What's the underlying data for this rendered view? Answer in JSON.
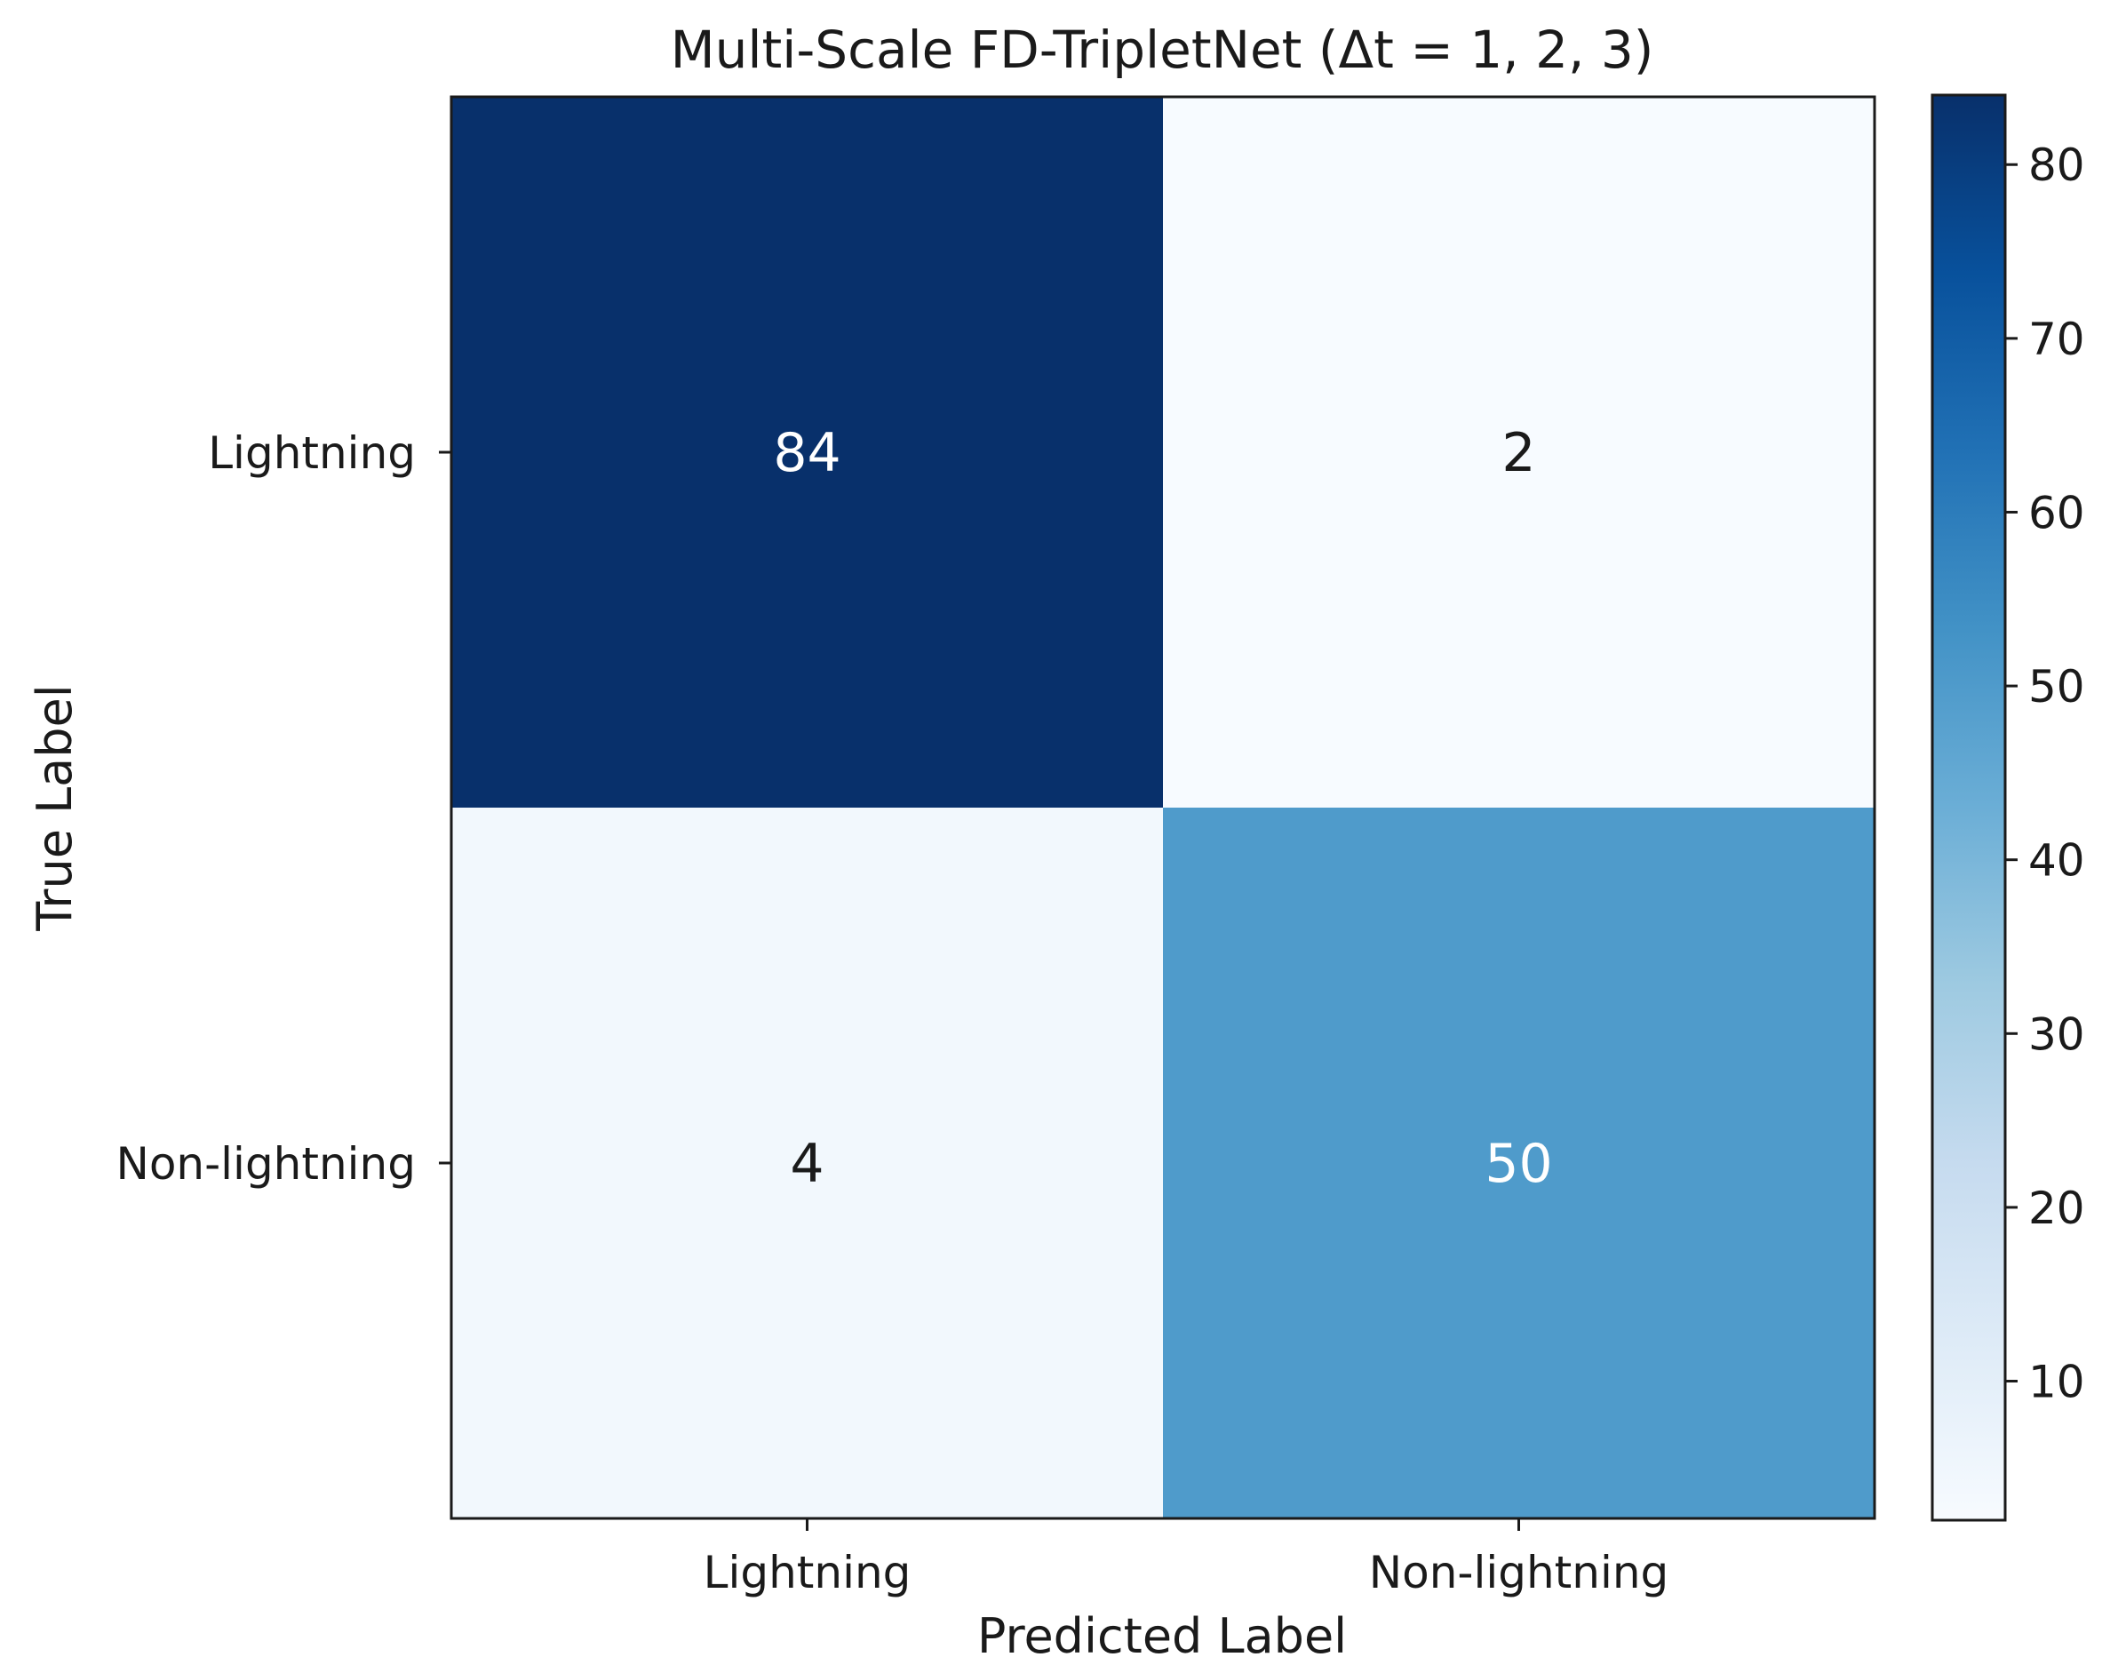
{
  "chart_data": {
    "type": "heatmap",
    "title": "Multi-Scale FD-TripletNet (Δt = 1, 2, 3)",
    "xlabel": "Predicted Label",
    "ylabel": "True Label",
    "x_categories": [
      "Lightning",
      "Non-lightning"
    ],
    "y_categories": [
      "Lightning",
      "Non-lightning"
    ],
    "values": [
      [
        84,
        2
      ],
      [
        4,
        50
      ]
    ],
    "colormap": "Blues",
    "color_range": [
      2,
      84
    ],
    "colorbar": {
      "ticks": [
        10,
        20,
        30,
        40,
        50,
        60,
        70,
        80
      ],
      "tick_labels": [
        "10",
        "20",
        "30",
        "40",
        "50",
        "60",
        "70",
        "80"
      ],
      "placement": "right"
    },
    "grid": false,
    "colors": {
      "low": "#f7fbff",
      "high": "#08306b",
      "text_on_dark": "#ffffff",
      "text_on_light": "#1a1a1a"
    }
  }
}
